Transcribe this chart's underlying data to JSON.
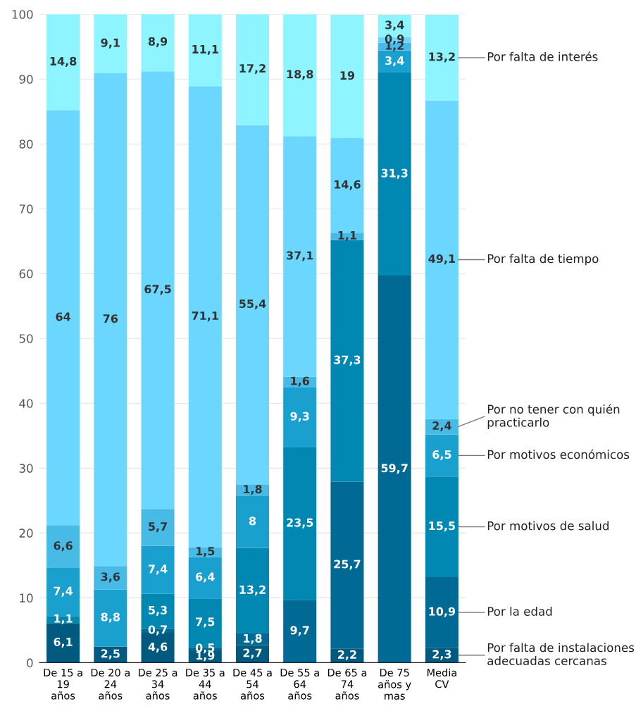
{
  "chart_data": {
    "type": "bar",
    "stacked": true,
    "categories": [
      "De 15 a\n19\naños",
      "De 20 a\n24\naños",
      "De 25 a\n34\naños",
      "De 35 a\n44\naños",
      "De 45 a\n54\naños",
      "De 55 a\n64\naños",
      "De 65 a\n74\naños",
      "De 75\naños y\nmas",
      "Media\nCV"
    ],
    "ylim": [
      0,
      100
    ],
    "yticks": [
      0,
      10,
      20,
      30,
      40,
      50,
      60,
      70,
      80,
      90,
      100
    ],
    "grid": "y",
    "legend": false,
    "series": [
      {
        "name": "Por falta de instalaciones\nadecuadas cercanas",
        "color": "#005a80",
        "values": [
          6.1,
          2.5,
          4.6,
          1.9,
          2.7,
          null,
          2.2,
          null,
          2.3
        ],
        "value_labels": [
          "6,1",
          "2,5",
          "4,6",
          "1,9",
          "2,7",
          null,
          "2,2",
          null,
          "2,3"
        ]
      },
      {
        "name": "Por la edad",
        "color": "#006994",
        "values": [
          null,
          null,
          0.7,
          0.5,
          1.8,
          9.7,
          25.7,
          59.7,
          10.9
        ],
        "value_labels": [
          null,
          null,
          "0,7",
          "0,5",
          "1,8",
          "9,7",
          "25,7",
          "59,7",
          "10,9"
        ]
      },
      {
        "name": "Por motivos de salud",
        "color": "#0088b3",
        "values": [
          1.1,
          null,
          5.3,
          7.5,
          13.2,
          23.5,
          37.3,
          31.3,
          15.5
        ],
        "value_labels": [
          "1,1",
          null,
          "5,3",
          "7,5",
          "13,2",
          "23,5",
          "37,3",
          "31,3",
          "15,5"
        ]
      },
      {
        "name": "Por motivos económicos",
        "color": "#1aa0cf",
        "values": [
          7.4,
          8.8,
          7.4,
          6.4,
          8,
          9.3,
          null,
          3.4,
          6.5
        ],
        "value_labels": [
          "7,4",
          "8,8",
          "7,4",
          "6,4",
          "8",
          "9,3",
          null,
          "3,4",
          "6,5"
        ]
      },
      {
        "name": "Por no tener con quién\npracticarlo",
        "color": "#47bbe6",
        "values": [
          6.6,
          3.6,
          5.7,
          1.5,
          1.8,
          1.6,
          1.1,
          1.2,
          2.4
        ],
        "value_labels": [
          "6,6",
          "3,6",
          "5,7",
          "1,5",
          "1,8",
          "1,6",
          "1,1",
          "1,2",
          "2,4"
        ]
      },
      {
        "name": "Por falta de tiempo",
        "color": "#6bd7ff",
        "values": [
          64,
          76,
          67.5,
          71.1,
          55.4,
          37.1,
          14.6,
          0.9,
          49.1
        ],
        "value_labels": [
          "64",
          "76",
          "67,5",
          "71,1",
          "55,4",
          "37,1",
          "14,6",
          "0,9",
          "49,1"
        ]
      },
      {
        "name": "Por falta de interés",
        "color": "#8ef4ff",
        "values": [
          14.8,
          9.1,
          8.9,
          11.1,
          17.2,
          18.8,
          19,
          3.4,
          13.2
        ],
        "value_labels": [
          "14,8",
          "9,1",
          "8,9",
          "11,1",
          "17,2",
          "18,8",
          "19",
          "3,4",
          "13,2"
        ]
      }
    ]
  }
}
